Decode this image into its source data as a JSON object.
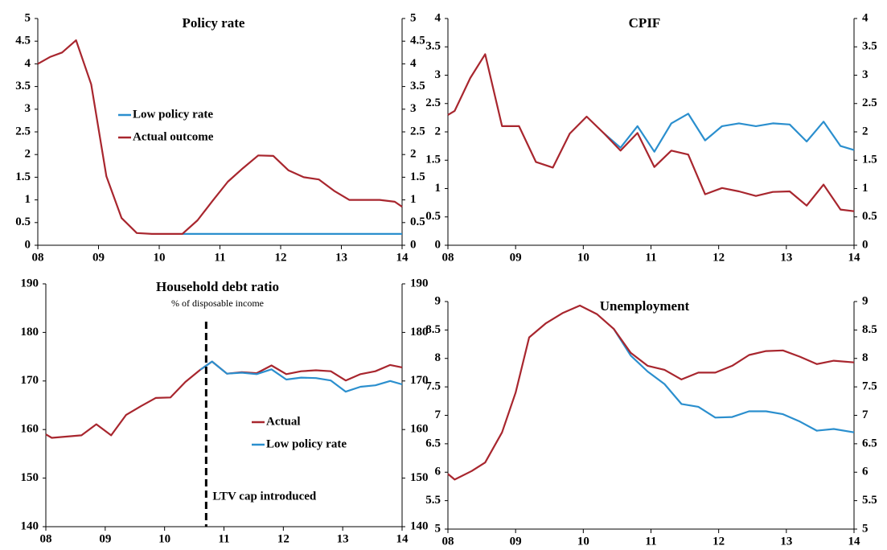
{
  "chart_data": [
    {
      "type": "line",
      "title": "Policy rate",
      "legend": "center-left",
      "x": [
        8.0,
        8.2,
        8.4,
        8.63,
        8.88,
        9.13,
        9.38,
        9.63,
        9.88,
        10.13,
        10.38,
        10.63,
        10.88,
        11.13,
        11.38,
        11.63,
        11.88,
        12.13,
        12.38,
        12.63,
        12.88,
        13.13,
        13.38,
        13.63,
        13.88,
        14.0
      ],
      "series": [
        {
          "name": "Low policy rate",
          "color": "#2b8fce",
          "values": [
            null,
            null,
            null,
            null,
            null,
            null,
            null,
            null,
            null,
            null,
            0.25,
            0.25,
            0.25,
            0.25,
            0.25,
            0.25,
            0.25,
            0.25,
            0.25,
            0.25,
            0.25,
            0.25,
            0.25,
            0.25,
            0.25,
            0.25
          ]
        },
        {
          "name": "Actual outcome",
          "color": "#a8262e",
          "values": [
            4.0,
            4.15,
            4.25,
            4.52,
            3.55,
            1.52,
            0.6,
            0.27,
            0.25,
            0.25,
            0.25,
            0.55,
            0.98,
            1.4,
            1.7,
            1.98,
            1.97,
            1.65,
            1.5,
            1.45,
            1.2,
            1.0,
            1.0,
            1.0,
            0.96,
            0.85
          ]
        }
      ],
      "xlim": [
        8,
        14
      ],
      "xticks": [
        {
          "value": 8,
          "label": "08"
        },
        {
          "value": 9,
          "label": "09"
        },
        10,
        11,
        12,
        13,
        14
      ],
      "ylim": [
        0,
        5
      ],
      "yticks": [
        0,
        0.5,
        1,
        1.5,
        2,
        2.5,
        3,
        3.5,
        4,
        4.5,
        5
      ],
      "y2lim": [
        0,
        5
      ],
      "y2ticks": [
        0,
        0.5,
        1,
        1.5,
        2,
        2.5,
        3,
        3.5,
        4,
        4.5,
        5
      ]
    },
    {
      "type": "line",
      "title": "CPIF",
      "x": [
        8.0,
        8.1,
        8.33,
        8.55,
        8.8,
        9.05,
        9.3,
        9.55,
        9.8,
        10.05,
        10.3,
        10.55,
        10.8,
        11.05,
        11.3,
        11.55,
        11.8,
        12.05,
        12.3,
        12.55,
        12.8,
        13.05,
        13.3,
        13.55,
        13.8,
        14.0
      ],
      "series": [
        {
          "name": "Low policy rate",
          "color": "#2b8fce",
          "values": [
            null,
            null,
            null,
            null,
            null,
            null,
            null,
            null,
            null,
            null,
            1.98,
            1.72,
            2.1,
            1.65,
            2.15,
            2.32,
            1.85,
            2.1,
            2.15,
            2.1,
            2.15,
            2.13,
            1.83,
            2.18,
            1.75,
            1.68
          ]
        },
        {
          "name": "Actual outcome",
          "color": "#a8262e",
          "values": [
            2.3,
            2.37,
            2.95,
            3.37,
            2.1,
            2.1,
            1.47,
            1.37,
            1.97,
            2.27,
            1.98,
            1.67,
            1.98,
            1.38,
            1.67,
            1.6,
            0.9,
            1.01,
            0.95,
            0.87,
            0.94,
            0.95,
            0.7,
            1.07,
            0.63,
            0.6
          ]
        }
      ],
      "xlim": [
        8,
        14
      ],
      "xticks": [
        {
          "value": 8,
          "label": "08"
        },
        {
          "value": 9,
          "label": "09"
        },
        10,
        11,
        12,
        13,
        14
      ],
      "ylim": [
        0,
        4
      ],
      "yticks": [
        0,
        0.5,
        1,
        1.5,
        2,
        2.5,
        3,
        3.5,
        4
      ],
      "y2lim": [
        0,
        4
      ],
      "y2ticks": [
        0,
        0.5,
        1,
        1.5,
        2,
        2.5,
        3,
        3.5,
        4
      ]
    },
    {
      "type": "line",
      "title": "Household debt ratio",
      "subtitle": "% of disposable income",
      "legend": "center",
      "vline": {
        "x": 10.7,
        "label": "LTV cap introduced"
      },
      "x": [
        8.0,
        8.1,
        8.6,
        8.85,
        9.1,
        9.35,
        9.6,
        9.85,
        10.1,
        10.35,
        10.6,
        10.8,
        11.05,
        11.3,
        11.55,
        11.8,
        12.05,
        12.3,
        12.55,
        12.8,
        13.05,
        13.3,
        13.55,
        13.8,
        14.0
      ],
      "series": [
        {
          "name": "Actual",
          "color": "#a8262e",
          "values": [
            159,
            158.3,
            158.8,
            161.1,
            158.8,
            163,
            164.8,
            166.5,
            166.6,
            169.8,
            172.3,
            174,
            171.5,
            171.8,
            171.6,
            173.2,
            171.4,
            172,
            172.2,
            172,
            170.1,
            171.4,
            172,
            173.3,
            172.8
          ]
        },
        {
          "name": "Low policy rate",
          "color": "#2b8fce",
          "values": [
            null,
            null,
            null,
            null,
            null,
            null,
            null,
            null,
            null,
            null,
            172.3,
            174,
            171.5,
            171.7,
            171.4,
            172.4,
            170.3,
            170.7,
            170.6,
            170.1,
            167.8,
            168.8,
            169.1,
            170,
            169.3
          ]
        }
      ],
      "xlim": [
        8,
        14
      ],
      "xticks": [
        {
          "value": 8,
          "label": "08"
        },
        {
          "value": 9,
          "label": "09"
        },
        10,
        11,
        12,
        13,
        14
      ],
      "ylim": [
        140,
        190
      ],
      "yticks": [
        140,
        150,
        160,
        170,
        180,
        190
      ],
      "y2lim": [
        140,
        190
      ],
      "y2ticks": [
        140,
        150,
        160,
        170,
        180,
        190
      ]
    },
    {
      "type": "line",
      "title": "Unemployment",
      "x": [
        8.0,
        8.1,
        8.35,
        8.55,
        8.8,
        9.0,
        9.2,
        9.45,
        9.7,
        9.95,
        10.2,
        10.45,
        10.7,
        10.95,
        11.2,
        11.45,
        11.7,
        11.95,
        12.2,
        12.45,
        12.7,
        12.95,
        13.2,
        13.45,
        13.7,
        14.0
      ],
      "series": [
        {
          "name": "Low policy rate",
          "color": "#2b8fce",
          "values": [
            null,
            null,
            null,
            null,
            null,
            null,
            null,
            null,
            null,
            null,
            null,
            8.52,
            8.05,
            7.77,
            7.55,
            7.2,
            7.15,
            6.96,
            6.97,
            7.07,
            7.07,
            7.02,
            6.89,
            6.73,
            6.76,
            6.7
          ]
        },
        {
          "name": "Actual outcome",
          "color": "#a8262e",
          "values": [
            5.97,
            5.87,
            6.02,
            6.17,
            6.7,
            7.4,
            8.37,
            8.62,
            8.8,
            8.93,
            8.78,
            8.52,
            8.1,
            7.87,
            7.8,
            7.63,
            7.75,
            7.75,
            7.87,
            8.06,
            8.13,
            8.14,
            8.03,
            7.9,
            7.96,
            7.93
          ]
        }
      ],
      "xlim": [
        8,
        14
      ],
      "xticks": [
        {
          "value": 8,
          "label": "08"
        },
        {
          "value": 9,
          "label": "09"
        },
        10,
        11,
        12,
        13,
        14
      ],
      "ylim": [
        5,
        9
      ],
      "yticks": [
        5,
        5.5,
        6,
        6.5,
        7,
        7.5,
        8,
        8.5,
        9
      ],
      "y2lim": [
        5,
        9
      ],
      "y2ticks": [
        5,
        5.5,
        6,
        6.5,
        7,
        7.5,
        8,
        8.5,
        9
      ]
    }
  ]
}
